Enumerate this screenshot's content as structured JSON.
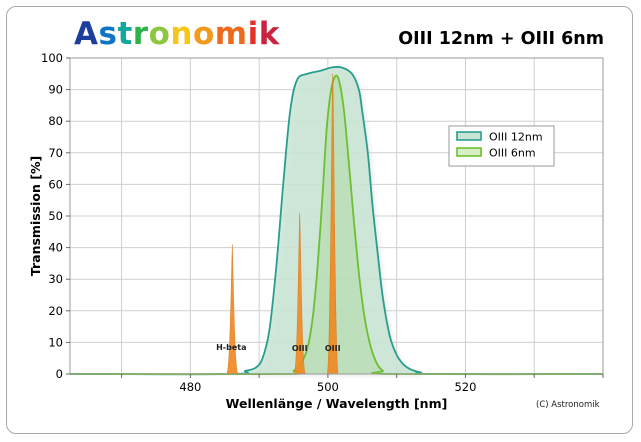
{
  "brand": {
    "letters": [
      "A",
      "s",
      "t",
      "r",
      "o",
      "n",
      "o",
      "m",
      "i",
      "k"
    ],
    "letter_colors": [
      "#1b3f9a",
      "#0d74c6",
      "#13a89e",
      "#2db34a",
      "#8ec63f",
      "#f7c61a",
      "#f39a1d",
      "#ee6a1f",
      "#e2332a",
      "#c9243f"
    ]
  },
  "copyright": "(C) Astronomik",
  "colors": {
    "oiii_12nm_line": "#2a9d8f",
    "oiii_12nm_fill": "#c7e5d2",
    "oiii_6nm_line": "#6cbf2f",
    "emission_line": "#f08a24",
    "emission_outline": "#d97b1f",
    "grid": "#cfcfcf",
    "shadow": "#d6dad6"
  },
  "chart_data": {
    "type": "line",
    "title": "OIII 12nm + OIII 6nm",
    "xlabel": "Wellenlänge / Wavelength [nm]",
    "ylabel": "Transmission [%]",
    "xlim": [
      462.5,
      540.0
    ],
    "ylim": [
      0,
      100
    ],
    "x_ticks": [
      480,
      500,
      520
    ],
    "y_ticks": [
      0,
      10,
      20,
      30,
      40,
      50,
      60,
      70,
      80,
      90,
      100
    ],
    "grid": true,
    "legend_position": "right",
    "series": [
      {
        "name": "OIII 12nm",
        "x": [
          462.5,
          486.0,
          488.0,
          489.5,
          490.5,
          491.5,
          492.5,
          493.5,
          494.5,
          495.5,
          497.0,
          499.0,
          500.5,
          502.0,
          503.5,
          504.5,
          505.0,
          505.8,
          506.5,
          507.3,
          508.0,
          509.0,
          510.0,
          511.0,
          512.0,
          513.5,
          515.0,
          540.0
        ],
        "y": [
          0,
          0,
          1,
          2,
          5,
          14,
          34,
          60,
          83,
          93,
          95,
          96,
          97,
          97,
          95,
          90,
          83,
          70,
          53,
          37,
          24,
          12,
          6,
          3,
          1.5,
          0.5,
          0,
          0
        ]
      },
      {
        "name": "OIII 6nm",
        "x": [
          462.5,
          494.0,
          495.0,
          496.0,
          497.0,
          497.8,
          498.5,
          499.2,
          499.8,
          500.4,
          501.0,
          501.6,
          502.3,
          503.0,
          503.8,
          504.6,
          505.4,
          506.3,
          507.2,
          508.0,
          509.0,
          540.0
        ],
        "y": [
          0,
          0,
          1,
          3,
          8,
          18,
          34,
          56,
          77,
          89,
          94,
          93,
          84,
          68,
          48,
          30,
          17,
          8,
          3,
          1,
          0,
          0
        ]
      }
    ],
    "emission_lines": [
      {
        "label": "H-beta",
        "wavelength": 486.1,
        "peak": 41
      },
      {
        "label": "OIII",
        "wavelength": 495.9,
        "peak": 51
      },
      {
        "label": "OIII",
        "wavelength": 500.7,
        "peak": 95
      }
    ]
  }
}
